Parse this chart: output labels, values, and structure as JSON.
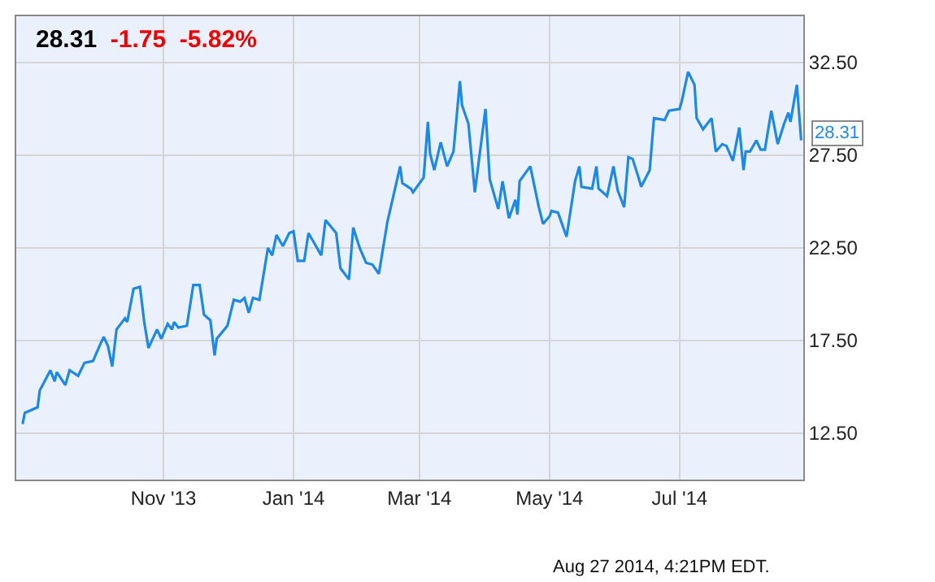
{
  "chart_data": {
    "type": "line",
    "title": "28.31",
    "subtitle": "-1.75  -5.82%",
    "annotations": [
      {
        "text": "28.31",
        "x": "2014-08-27",
        "y": 28.31
      },
      "Aug 27 2014, 4:21PM EDT."
    ],
    "x": [
      "2013-08-27",
      "2013-08-28",
      "2013-09-03",
      "2013-09-04",
      "2013-09-09",
      "2013-09-11",
      "2013-09-12",
      "2013-09-16",
      "2013-09-18",
      "2013-09-22",
      "2013-09-25",
      "2013-09-29",
      "2013-10-02",
      "2013-10-04",
      "2013-10-06",
      "2013-10-08",
      "2013-10-10",
      "2013-10-14",
      "2013-10-15",
      "2013-10-18",
      "2013-10-21",
      "2013-10-23",
      "2013-10-25",
      "2013-10-29",
      "2013-10-31",
      "2013-11-03",
      "2013-11-05",
      "2013-11-06",
      "2013-11-08",
      "2013-11-12",
      "2013-11-15",
      "2013-11-18",
      "2013-11-20",
      "2013-11-23",
      "2013-11-25",
      "2013-11-26",
      "2013-12-01",
      "2013-12-04",
      "2013-12-07",
      "2013-12-09",
      "2013-12-11",
      "2013-12-13",
      "2013-12-16",
      "2013-12-19",
      "2013-12-20",
      "2013-12-22",
      "2013-12-24",
      "2013-12-27",
      "2013-12-30",
      "2014-01-01",
      "2014-01-03",
      "2014-01-06",
      "2014-01-08",
      "2014-01-14",
      "2014-01-16",
      "2014-01-21",
      "2014-01-23",
      "2014-01-27",
      "2014-01-29",
      "2014-02-01",
      "2014-02-04",
      "2014-02-07",
      "2014-02-10",
      "2014-02-14",
      "2014-02-20",
      "2014-02-21",
      "2014-02-25",
      "2014-02-26",
      "2014-03-03",
      "2014-03-05",
      "2014-03-06",
      "2014-03-08",
      "2014-03-11",
      "2014-03-14",
      "2014-03-17",
      "2014-03-20",
      "2014-03-21",
      "2014-03-24",
      "2014-03-27",
      "2014-04-01",
      "2014-04-03",
      "2014-04-07",
      "2014-04-09",
      "2014-04-12",
      "2014-04-15",
      "2014-04-16",
      "2014-04-17",
      "2014-04-22",
      "2014-04-26",
      "2014-04-28",
      "2014-05-01",
      "2014-05-02",
      "2014-05-05",
      "2014-05-09",
      "2014-05-13",
      "2014-05-15",
      "2014-05-16",
      "2014-05-21",
      "2014-05-23",
      "2014-05-24",
      "2014-05-28",
      "2014-05-31",
      "2014-06-02",
      "2014-06-05",
      "2014-06-07",
      "2014-06-09",
      "2014-06-12",
      "2014-06-13",
      "2014-06-17",
      "2014-06-19",
      "2014-06-24",
      "2014-06-26",
      "2014-07-01",
      "2014-07-02",
      "2014-07-05",
      "2014-07-08",
      "2014-07-09",
      "2014-07-12",
      "2014-07-16",
      "2014-07-18",
      "2014-07-21",
      "2014-07-23",
      "2014-07-26",
      "2014-07-29",
      "2014-07-31",
      "2014-08-01",
      "2014-08-03",
      "2014-08-06",
      "2014-08-08",
      "2014-08-10",
      "2014-08-13",
      "2014-08-16",
      "2014-08-19",
      "2014-08-21",
      "2014-08-22",
      "2014-08-25",
      "2014-08-27"
    ],
    "series": [
      {
        "color": "#1e88e5",
        "values": [
          13.0,
          13.6,
          13.9,
          14.8,
          15.9,
          15.3,
          15.8,
          15.1,
          15.9,
          15.6,
          16.3,
          16.4,
          17.2,
          17.7,
          17.2,
          16.1,
          18.1,
          18.7,
          18.5,
          20.3,
          20.4,
          18.5,
          17.1,
          18.1,
          17.6,
          18.4,
          18.1,
          18.5,
          18.2,
          18.3,
          20.5,
          20.5,
          18.9,
          18.6,
          16.7,
          17.6,
          18.3,
          19.7,
          19.6,
          19.8,
          19.0,
          19.8,
          19.7,
          21.8,
          22.5,
          22.1,
          23.2,
          22.6,
          23.3,
          23.4,
          21.8,
          21.8,
          23.3,
          22.1,
          24.0,
          23.3,
          21.4,
          20.8,
          23.6,
          22.5,
          21.7,
          21.6,
          21.1,
          23.9,
          26.9,
          26.0,
          25.7,
          25.5,
          26.3,
          29.3,
          27.6,
          26.7,
          28.2,
          26.9,
          27.7,
          31.5,
          30.2,
          29.2,
          25.5,
          30.0,
          26.2,
          24.6,
          26.1,
          24.1,
          25.1,
          24.3,
          26.1,
          26.9,
          24.7,
          23.8,
          24.2,
          24.5,
          24.4,
          23.1,
          26.1,
          26.9,
          25.8,
          25.7,
          26.9,
          25.7,
          25.3,
          26.9,
          25.6,
          24.7,
          27.4,
          27.3,
          26.2,
          25.8,
          26.7,
          29.5,
          29.4,
          29.9,
          30.0,
          30.4,
          32.0,
          31.3,
          29.5,
          28.9,
          29.5,
          27.7,
          28.1,
          28.0,
          27.2,
          29.0,
          26.7,
          27.7,
          27.7,
          28.3,
          27.8,
          27.8,
          29.9,
          28.1,
          29.2,
          29.8,
          29.3,
          31.3,
          28.31
        ]
      }
    ],
    "xlim": [
      "2013-08-24",
      "2014-08-28"
    ],
    "xticks": [
      {
        "value": "2013-11-01",
        "label": "Nov '13"
      },
      {
        "value": "2014-01-01",
        "label": "Jan '14"
      },
      {
        "value": "2014-03-01",
        "label": "Mar '14"
      },
      {
        "value": "2014-05-01",
        "label": "May '14"
      },
      {
        "value": "2014-07-01",
        "label": "Jul '14"
      }
    ],
    "ylim": [
      10,
      35
    ],
    "yticks": [
      {
        "value": 12.5,
        "label": "12.50"
      },
      {
        "value": 17.5,
        "label": "17.50"
      },
      {
        "value": 22.5,
        "label": "22.50"
      },
      {
        "value": 27.5,
        "label": "27.50"
      },
      {
        "value": 32.5,
        "label": "32.50"
      }
    ],
    "grid": true,
    "marker": "none",
    "line_style": "solid"
  }
}
